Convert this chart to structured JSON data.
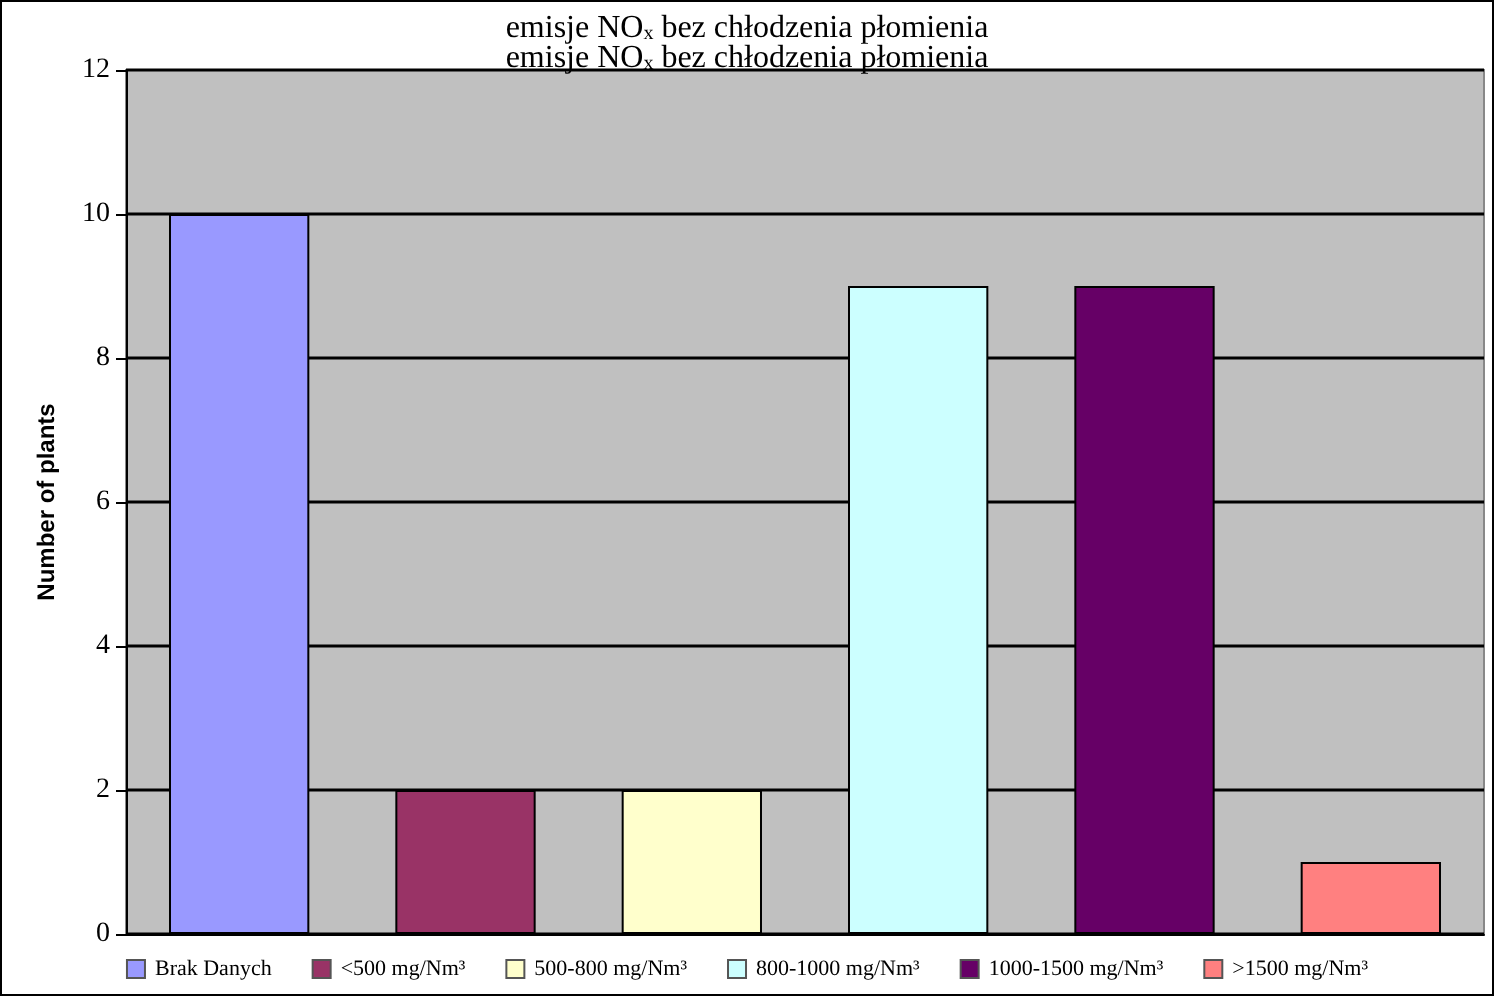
{
  "chart_data": {
    "type": "bar",
    "title": "emisje NO$_{x}$ bez chłodzenia płomienia",
    "subtitle": "emisje NO$_{x}$ bez chłodzenia płomienia",
    "ylabel": "Number of plants",
    "categories": [
      null,
      null,
      null,
      null,
      null,
      null
    ],
    "series": [
      {
        "name": "Brak Danych",
        "color": "#9999ff",
        "values": [
          10,
          null,
          null,
          null,
          null,
          null
        ]
      },
      {
        "name": "<500 mg/Nm³",
        "color": "#993366",
        "values": [
          null,
          2,
          null,
          null,
          null,
          null
        ]
      },
      {
        "name": "500-800 mg/Nm³",
        "color": "#ffffcc",
        "values": [
          null,
          null,
          2,
          null,
          null,
          null
        ]
      },
      {
        "name": "800-1000 mg/Nm³",
        "color": "#ccffff",
        "values": [
          null,
          null,
          null,
          9,
          null,
          null
        ]
      },
      {
        "name": "1000-1500 mg/Nm³",
        "color": "#660066",
        "values": [
          null,
          null,
          null,
          null,
          9,
          null
        ]
      },
      {
        "name": ">1500 mg/Nm³",
        "color": "#ff8080",
        "values": [
          null,
          null,
          null,
          null,
          null,
          1
        ]
      }
    ],
    "ylim": [
      0,
      12
    ],
    "yticks": [
      0,
      2,
      4,
      6,
      8,
      10,
      12
    ],
    "grid": "y",
    "legend": "bottom"
  }
}
